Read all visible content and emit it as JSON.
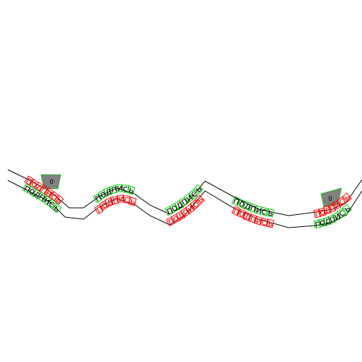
{
  "canvas": {
    "background": "#ffffff"
  },
  "road": {
    "stroke_color": "#000000",
    "top_label_color": "#ff0000",
    "bottom_label_color": "#000000",
    "label_box_top_color": "#ff0000",
    "label_box_bottom_color": "#00cc00"
  },
  "labels": {
    "caption": "подпись",
    "shield_left": "0",
    "shield_right": "0"
  }
}
